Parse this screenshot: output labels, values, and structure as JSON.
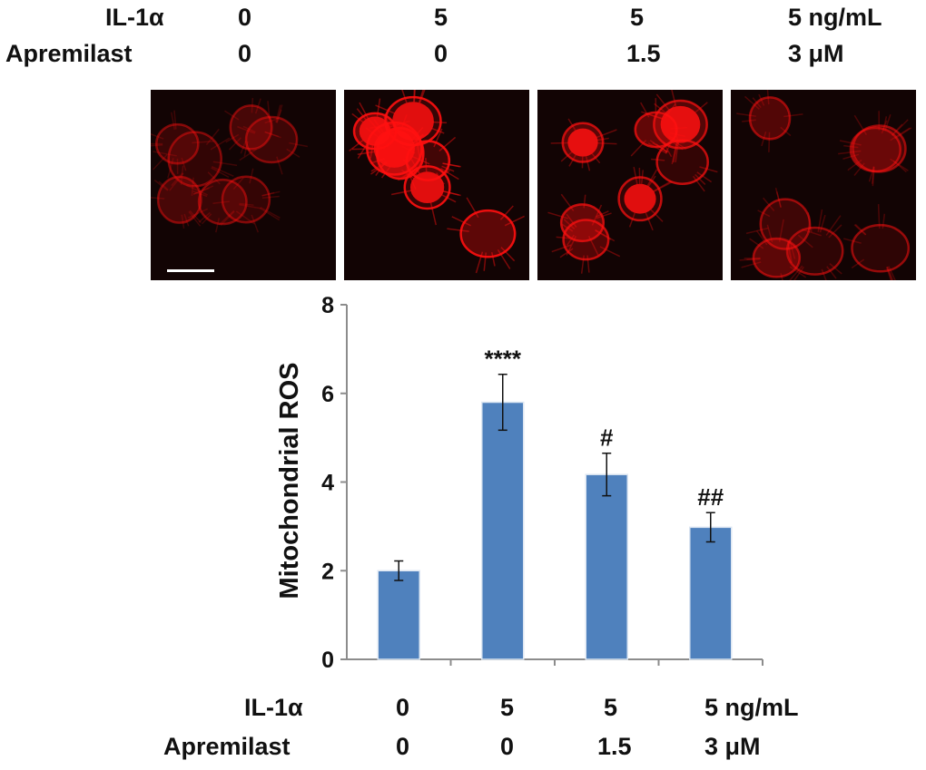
{
  "top_header": {
    "rows": [
      {
        "label": "IL-1α",
        "values": [
          "0",
          "5",
          "5",
          "5 ng/mL"
        ]
      },
      {
        "label": "Apremilast",
        "values": [
          "0",
          "0",
          "1.5",
          "3 μM"
        ]
      }
    ]
  },
  "micrographs": [
    {
      "brightness": 0.25
    },
    {
      "brightness": 1.0
    },
    {
      "brightness": 0.7
    },
    {
      "brightness": 0.4
    }
  ],
  "colors": {
    "bar": "#4f81bd",
    "fluorescence": "#ff1010",
    "axis": "#8c8c8c"
  },
  "chart_data": {
    "type": "bar",
    "ylabel": "Mitochondrial ROS",
    "ylim": [
      0,
      8
    ],
    "yticks": [
      "0",
      "2",
      "4",
      "6",
      "8"
    ],
    "categories": [
      "0/0",
      "5/0",
      "5/1.5",
      "5/3"
    ],
    "values": [
      2.0,
      5.8,
      4.17,
      2.98
    ],
    "errors": [
      0.22,
      0.63,
      0.48,
      0.33
    ],
    "annotations": [
      "",
      "****",
      "#",
      "##"
    ],
    "x_table": {
      "rows": [
        {
          "label": "IL-1α",
          "values": [
            "0",
            "5",
            "5",
            "5 ng/mL"
          ]
        },
        {
          "label": "Apremilast",
          "values": [
            "0",
            "0",
            "1.5",
            "3 μM"
          ]
        }
      ]
    }
  }
}
